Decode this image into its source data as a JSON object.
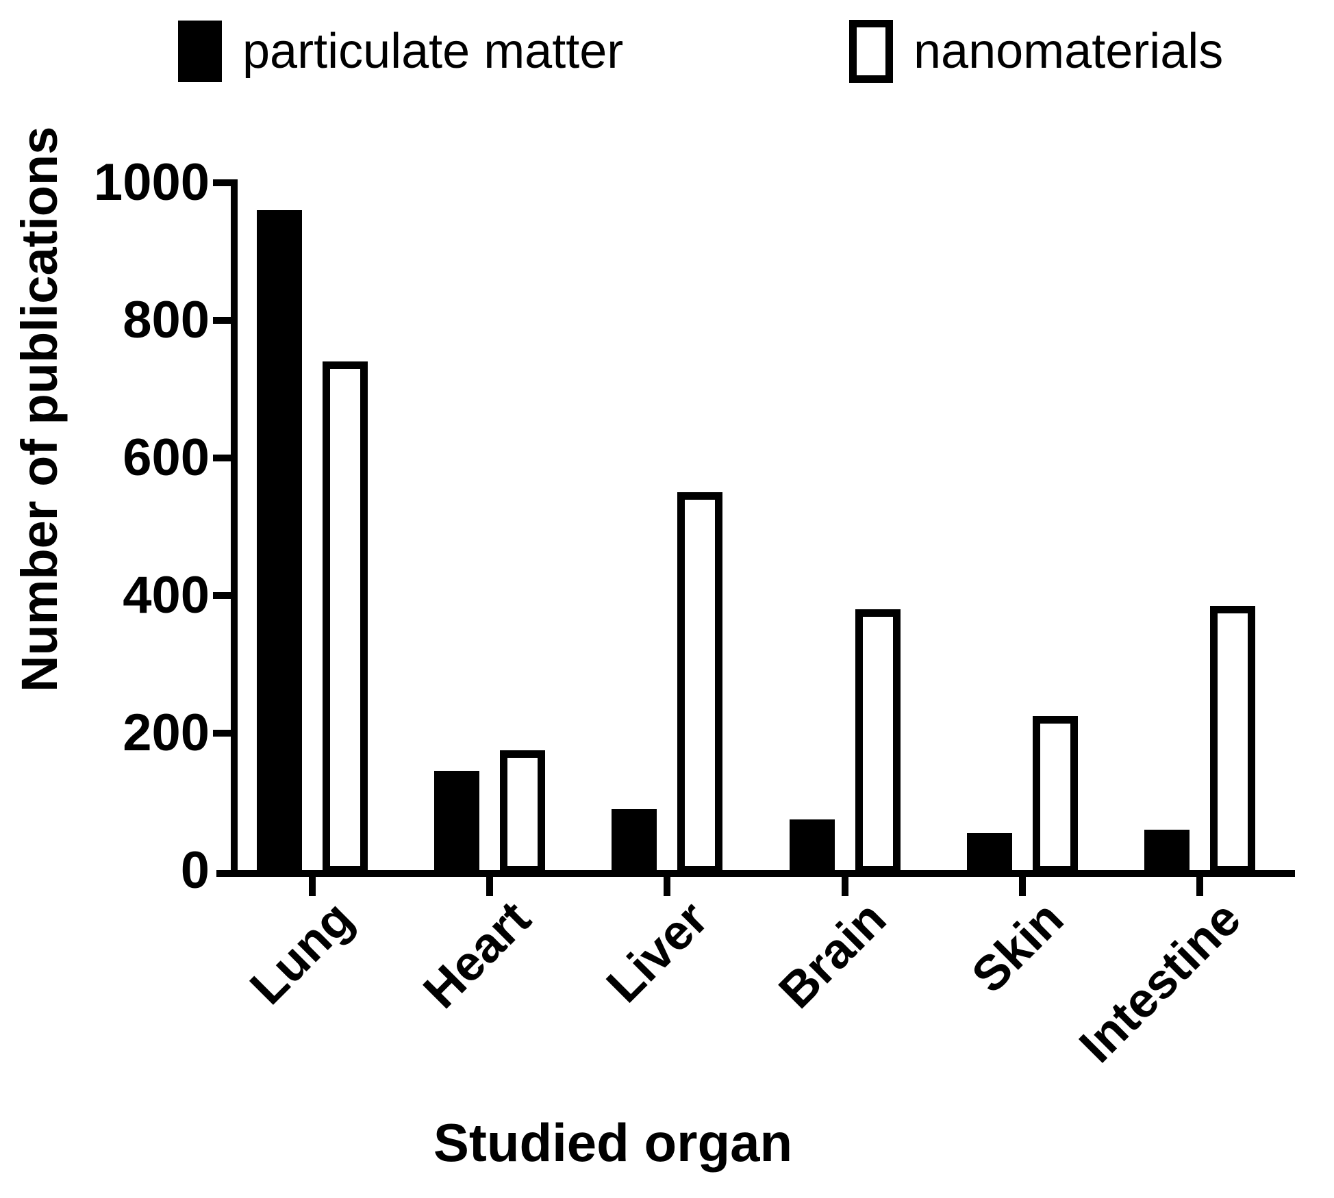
{
  "legend": {
    "items": [
      {
        "label": "particulate matter",
        "swatch": "black"
      },
      {
        "label": "nanomaterials",
        "swatch": "white"
      }
    ]
  },
  "chart_data": {
    "type": "bar",
    "title": "",
    "categories": [
      "Lung",
      "Heart",
      "Liver",
      "Brain",
      "Skin",
      "Intestine"
    ],
    "series": [
      {
        "name": "particulate matter",
        "values": [
          960,
          145,
          90,
          75,
          55,
          60
        ],
        "color": "#000000"
      },
      {
        "name": "nanomaterials",
        "values": [
          740,
          175,
          550,
          380,
          225,
          385
        ],
        "color": "#ffffff"
      }
    ],
    "xlabel": "Studied organ",
    "ylabel": "Number of publications",
    "ylim": [
      0,
      1000
    ],
    "yticks": [
      0,
      200,
      400,
      600,
      800,
      1000
    ],
    "grid": false,
    "legend_position": "top",
    "bar_outline_color": "#000000",
    "background_color": "#ffffff"
  }
}
